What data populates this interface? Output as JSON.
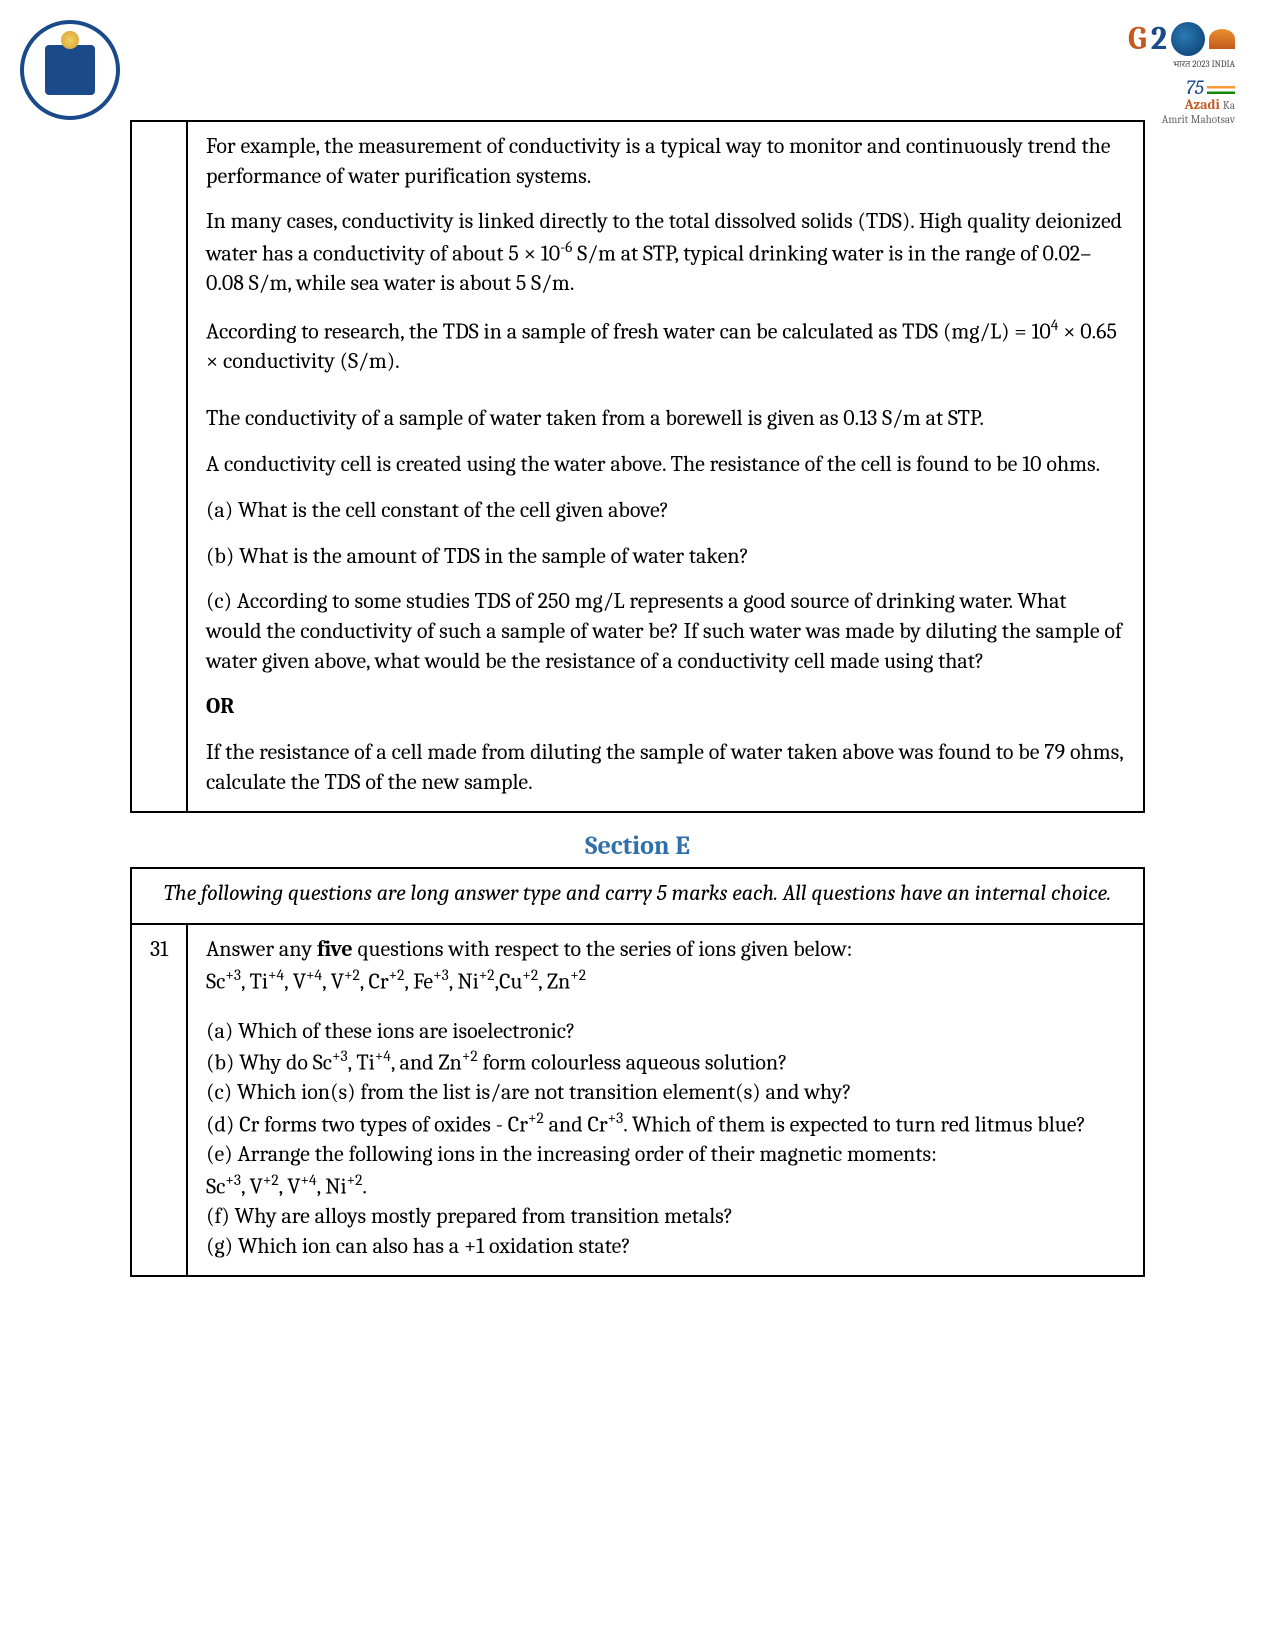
{
  "header": {
    "g20": {
      "g": "G",
      "two": "2",
      "sub": "भारत 2023 INDIA"
    },
    "azadi": {
      "num": "75",
      "line1": "Azadi",
      "ka": "Ka",
      "line2": "Amrit Mahotsav"
    }
  },
  "q30": {
    "p1": "For example, the measurement of conductivity is a typical way to monitor and continuously trend the performance of water purification systems.",
    "p2a": "In many cases, conductivity is linked directly to the total dissolved solids (TDS). High quality deionized water has a conductivity of about 5 × 10",
    "p2exp": "-6",
    "p2b": " S/m at STP, typical drinking water is in the range of 0.02–0.08 S/m, while sea water is about 5 S/m.",
    "p3a": "According to research, the TDS in a sample of fresh water can be calculated as TDS (mg/L) = 10",
    "p3exp": "4",
    "p3b": " × 0.65 × conductivity (S/m).",
    "p4": "The conductivity of a sample of water taken from a borewell is given as 0.13 S/m at STP.",
    "p5": "A conductivity cell is created using the water above. The resistance of the cell is found to be 10 ohms.",
    "qa": "(a) What is the cell constant of the cell given above?",
    "qb": "(b) What is the amount of TDS in the sample of water taken?",
    "qc": "(c) According to some studies TDS of 250 mg/L represents a good source of drinking water. What would the conductivity of such a sample of water be? If such water was made by diluting the sample of water given above, what would be the resistance of a conductivity cell made using that?",
    "or": "OR",
    "alt": "If the resistance of a cell made from diluting the sample of water taken above was found to be 79 ohms, calculate the TDS of the new sample."
  },
  "sectionE": {
    "title": "Section E",
    "instr": "The following questions are long answer type and carry 5 marks each. All questions have an internal choice."
  },
  "q31": {
    "num": "31",
    "intro_a": "Answer any ",
    "intro_bold": "five",
    "intro_b": " questions with respect to the series of ions given below:",
    "ions": "Sc+3, Ti+4, V+4, V+2, Cr+2, Fe+3, Ni+2,Cu+2, Zn+2",
    "a": "(a) Which of these ions are isoelectronic?",
    "b": "(b) Why do Sc+3, Ti+4, and Zn+2 form colourless aqueous solution?",
    "c": "(c) Which ion(s) from the list is/are not transition element(s) and why?",
    "d": "(d) Cr forms two types of oxides - Cr+2 and Cr+3. Which of them is expected to turn red litmus blue?",
    "e": "(e) Arrange the following ions in the increasing order of their magnetic moments:",
    "e2": " Sc+3, V+2, V+4, Ni+2.",
    "f": "(f) Why are alloys mostly prepared from transition metals?",
    "g": "(g) Which ion can also has a +1 oxidation state?"
  }
}
